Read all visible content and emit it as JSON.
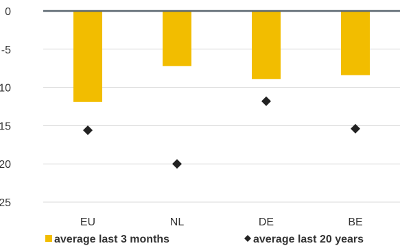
{
  "chart_data": {
    "type": "bar",
    "categories": [
      "EU",
      "NL",
      "DE",
      "BE"
    ],
    "series": [
      {
        "name": "average last 3 months",
        "kind": "bar",
        "marker": "square",
        "color": "#f2bd00",
        "values": [
          -11.9,
          -7.2,
          -8.9,
          -8.4
        ]
      },
      {
        "name": "average last 20 years",
        "kind": "scatter",
        "marker": "diamond",
        "color": "#222222",
        "values": [
          -15.6,
          -20.0,
          -11.8,
          -15.4
        ]
      }
    ],
    "ylim": [
      -25,
      0
    ],
    "yticks": [
      0,
      -5,
      -10,
      -15,
      -20,
      -25
    ],
    "grid": true,
    "legend_position": "bottom"
  }
}
